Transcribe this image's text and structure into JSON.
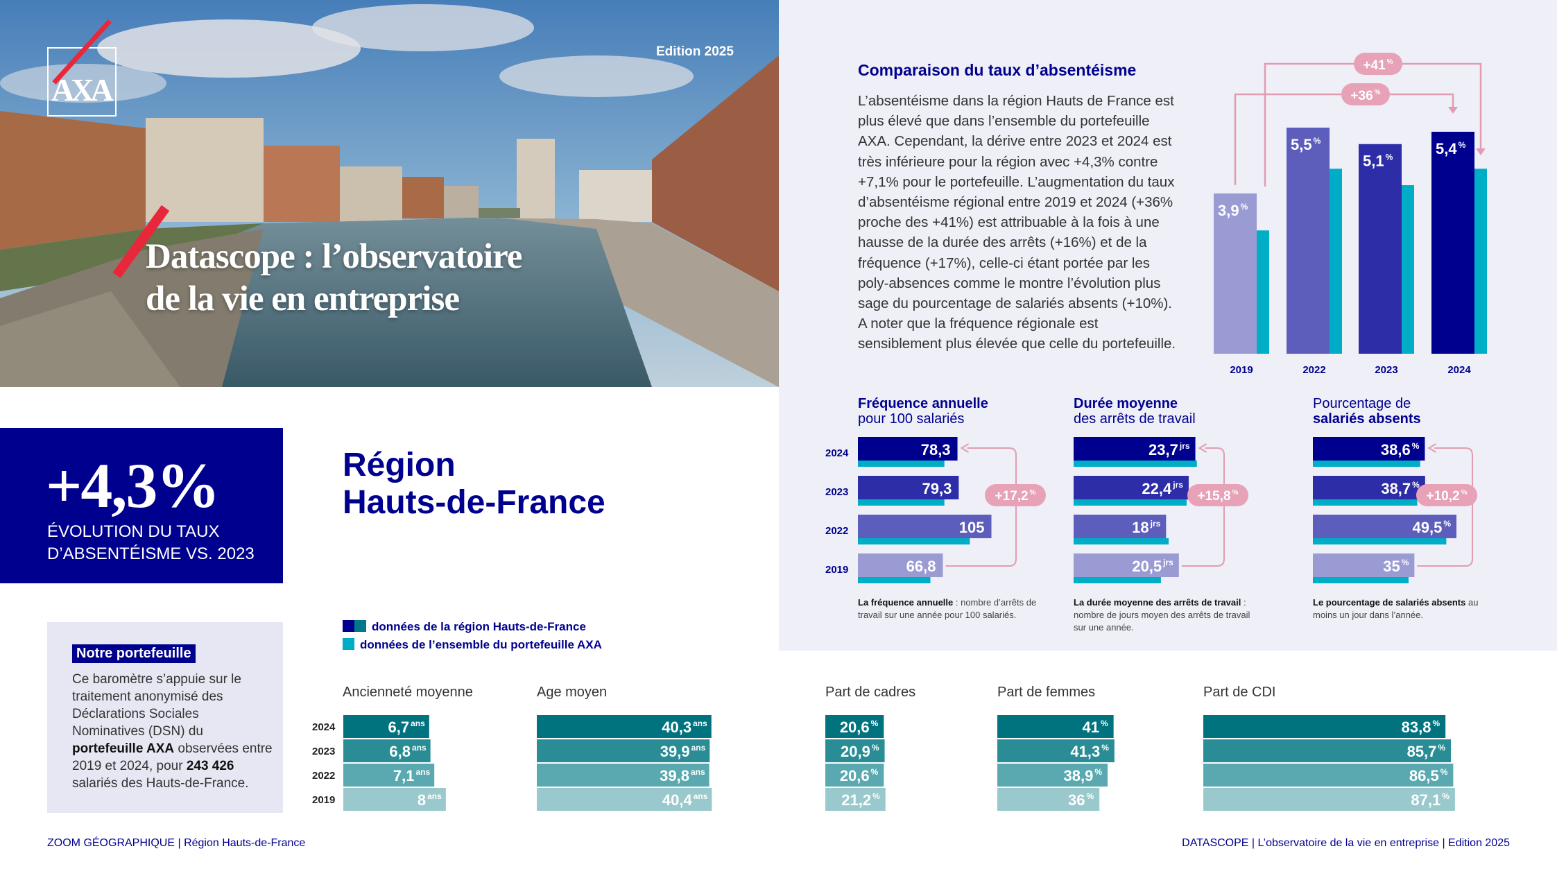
{
  "header": {
    "logo": "AXA",
    "edition": "Edition 2025",
    "title_line1": "Datascope : l’observatoire",
    "title_line2": "de la vie en entreprise"
  },
  "kpi": {
    "value": "+4,3%",
    "label_line1": "ÉVOLUTION DU TAUX",
    "label_line2": "D’ABSENTÉISME VS. 2023"
  },
  "region": {
    "line1": "Région",
    "line2": "Hauts-de-France"
  },
  "portfolio": {
    "title": "Notre portefeuille",
    "t1": "Ce baromètre s’appuie sur le traitement anonymisé des Déclarations Sociales Nominatives (DSN) du ",
    "b1": "portefeuille AXA",
    "t2": " observées entre 2019 et 2024, pour ",
    "b2": "243 426",
    "t3": " salariés des Hauts-de-France."
  },
  "legend": {
    "region": "données de la région Hauts-de-France",
    "portfolio": "données de l’ensemble du portefeuille AXA"
  },
  "comparison": {
    "title": "Comparaison du taux d’absentéisme",
    "body": "L’absentéisme dans la région Hauts de France est plus élevé que dans l’ensemble du portefeuille AXA. Cependant, la dérive entre 2023 et 2024 est très inférieure pour la région avec +4,3% contre +7,1% pour le portefeuille. L’augmentation du taux d’absentéisme régional entre 2019 et 2024 (+36% proche des +41%) est attribuable à la fois à une hausse de la durée des arrêts (+16%) et de la fréquence (+17%), celle-ci étant portée par les poly-absences comme le montre l’évolution plus sage du pourcentage de salariés absents (+10%). A noter que la fréquence régionale est sensiblement plus élevée que celle du portefeuille."
  },
  "metrics": {
    "freq": {
      "bold": "Fréquence annuelle",
      "sub": "pour 100 salariés",
      "note_b": "La fréquence annuelle",
      "note": " : nombre d’arrêts de travail sur une année pour 100 salariés."
    },
    "duree": {
      "bold": "Durée moyenne",
      "sub": "des arrêts de travail",
      "note_b": "La durée moyenne des arrêts de travail",
      "note": " : nombre de jours moyen des arrêts de travail sur une année."
    },
    "pct": {
      "reg": "Pourcentage de",
      "bold": "salariés absents",
      "note_b": "Le pourcentage de salariés absents",
      "note": " au moins un jour dans l’année."
    }
  },
  "bottom_titles": [
    "Ancienneté moyenne",
    "Age moyen",
    "Part de cadres",
    "Part de femmes",
    "Part de CDI"
  ],
  "footer": {
    "left": "ZOOM GÉOGRAPHIQUE  |  Région Hauts-de-France",
    "right": "DATASCOPE  |  L’observatoire de la vie en entreprise  |  Edition 2025"
  },
  "colors": {
    "navy": "#00008f",
    "teal": "#00adc6",
    "red": "#e8283a",
    "pink": "#e29cb1"
  },
  "chart_data": [
    {
      "type": "bar",
      "title": "Comparaison du taux d’absentéisme",
      "categories": [
        "2019",
        "2022",
        "2023",
        "2024"
      ],
      "series": [
        {
          "name": "données de la région Hauts-de-France",
          "values": [
            3.9,
            5.5,
            5.1,
            5.4
          ],
          "labels": [
            "3,9",
            "5,5",
            "5,1",
            "5,4"
          ]
        },
        {
          "name": "données de l’ensemble du portefeuille AXA",
          "values": [
            3.0,
            4.5,
            4.1,
            4.5
          ]
        }
      ],
      "annotations": [
        "+36%",
        "+41%"
      ],
      "ylim": [
        0,
        6
      ]
    },
    {
      "type": "bar",
      "orientation": "horizontal",
      "title": "Fréquence annuelle",
      "categories": [
        "2024",
        "2023",
        "2022",
        "2019"
      ],
      "series": [
        {
          "name": "données de la région Hauts-de-France",
          "values": [
            78.3,
            79.3,
            105,
            66.8
          ],
          "labels": [
            "78,3",
            "79,3",
            "105",
            "66,8"
          ]
        },
        {
          "name": "données de l’ensemble du portefeuille AXA",
          "values": [
            68,
            68,
            88,
            57
          ]
        }
      ],
      "annotation": "+17,2%",
      "xlim": [
        0,
        120
      ]
    },
    {
      "type": "bar",
      "orientation": "horizontal",
      "title": "Durée moyenne",
      "categories": [
        "2024",
        "2023",
        "2022",
        "2019"
      ],
      "series": [
        {
          "name": "données de la région Hauts-de-France",
          "values": [
            23.7,
            22.4,
            18,
            20.5
          ],
          "labels": [
            "23,7",
            "22,4",
            "18",
            "20,5"
          ],
          "unit": "jrs"
        },
        {
          "name": "données de l’ensemble du portefeuille AXA",
          "values": [
            24,
            22,
            18.5,
            17
          ]
        }
      ],
      "annotation": "+15,8%",
      "xlim": [
        0,
        27
      ]
    },
    {
      "type": "bar",
      "orientation": "horizontal",
      "title": "Pourcentage de salariés absents",
      "categories": [
        "2024",
        "2023",
        "2022",
        "2019"
      ],
      "series": [
        {
          "name": "données de la région Hauts-de-France",
          "values": [
            38.6,
            38.7,
            49.5,
            35
          ],
          "labels": [
            "38,6",
            "38,7",
            "49,5",
            "35"
          ],
          "unit": "%"
        },
        {
          "name": "données de l’ensemble du portefeuille AXA",
          "values": [
            37,
            36,
            46,
            33
          ]
        }
      ],
      "annotation": "+10,2%",
      "xlim": [
        0,
        55
      ]
    },
    {
      "type": "bar",
      "orientation": "horizontal",
      "title": "Ancienneté moyenne",
      "categories": [
        "2024",
        "2023",
        "2022",
        "2019"
      ],
      "values": [
        6.7,
        6.8,
        7.1,
        8
      ],
      "labels": [
        "6,7",
        "6,8",
        "7,1",
        "8"
      ],
      "unit": "ans",
      "xlim": [
        0,
        9.2
      ]
    },
    {
      "type": "bar",
      "orientation": "horizontal",
      "title": "Age moyen",
      "categories": [
        "2024",
        "2023",
        "2022",
        "2019"
      ],
      "values": [
        40.3,
        39.9,
        39.8,
        40.4
      ],
      "labels": [
        "40,3",
        "39,9",
        "39,8",
        "40,4"
      ],
      "unit": "ans",
      "xlim": [
        0,
        40.5
      ]
    },
    {
      "type": "bar",
      "orientation": "horizontal",
      "title": "Part de cadres",
      "categories": [
        "2024",
        "2023",
        "2022",
        "2019"
      ],
      "values": [
        20.6,
        20.9,
        20.6,
        21.2
      ],
      "labels": [
        "20,6",
        "20,9",
        "20,6",
        "21,2"
      ],
      "unit": "%",
      "xlim": [
        0,
        21.5
      ]
    },
    {
      "type": "bar",
      "orientation": "horizontal",
      "title": "Part de femmes",
      "categories": [
        "2024",
        "2023",
        "2022",
        "2019"
      ],
      "values": [
        41,
        41.3,
        38.9,
        36
      ],
      "labels": [
        "41",
        "41,3",
        "38,9",
        "36"
      ],
      "unit": "%",
      "xlim": [
        0,
        42.8
      ]
    },
    {
      "type": "bar",
      "orientation": "horizontal",
      "title": "Part de CDI",
      "categories": [
        "2024",
        "2023",
        "2022",
        "2019"
      ],
      "values": [
        83.8,
        85.7,
        86.5,
        87.1
      ],
      "labels": [
        "83,8",
        "85,7",
        "86,5",
        "87,1"
      ],
      "unit": "%",
      "xlim": [
        0,
        87.6
      ]
    }
  ]
}
